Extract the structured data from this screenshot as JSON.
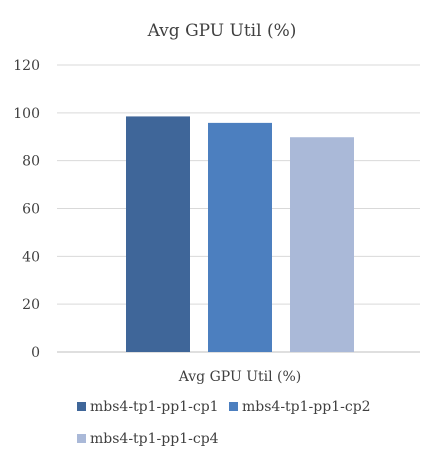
{
  "chart_data": {
    "type": "bar",
    "title": "Avg GPU Util (%)",
    "categories": [
      "Avg GPU Util (%)"
    ],
    "series": [
      {
        "name": "mbs4-tp1-pp1-cp1",
        "values": [
          98.5
        ],
        "color": "#3F6699"
      },
      {
        "name": "mbs4-tp1-pp1-cp2",
        "values": [
          95.8
        ],
        "color": "#4C7FBF"
      },
      {
        "name": "mbs4-tp1-pp1-cp4",
        "values": [
          89.8
        ],
        "color": "#AAB9D8"
      }
    ],
    "ylim": [
      0,
      120
    ],
    "yticks": [
      "0",
      "20",
      "40",
      "60",
      "80",
      "100",
      "120"
    ],
    "grid": true,
    "legend_position": "bottom",
    "xlabel": "",
    "ylabel": ""
  }
}
